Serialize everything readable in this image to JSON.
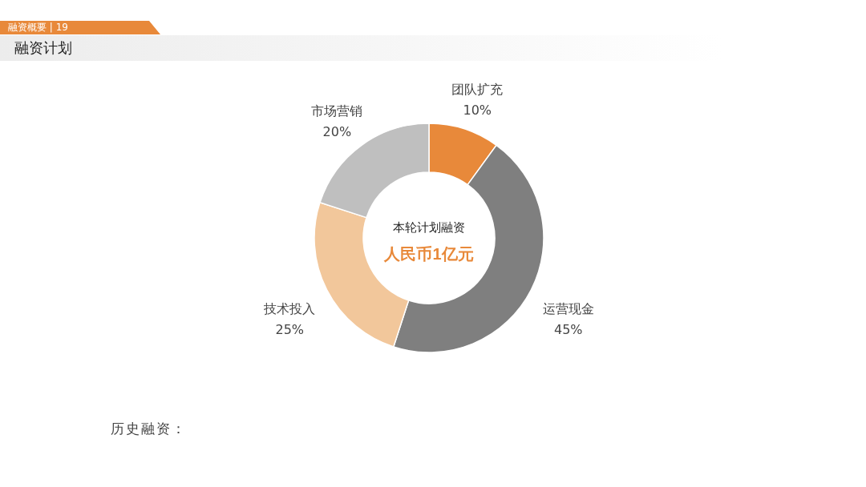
{
  "chart_data": {
    "type": "donut",
    "title": "融资计划",
    "subtitle": "融资概要 | 19",
    "categories": [
      "团队扩充",
      "运营现金",
      "技术投入",
      "市场营销"
    ],
    "values": [
      10,
      45,
      25,
      20
    ],
    "value_labels": [
      "10%",
      "45%",
      "25%",
      "20%"
    ],
    "colors": [
      "#e8893a",
      "#7f7f7f",
      "#f2c79b",
      "#bfbfbf"
    ],
    "annotations": [
      "本轮计划融资",
      "人民币1亿元",
      "历史融资："
    ]
  }
}
